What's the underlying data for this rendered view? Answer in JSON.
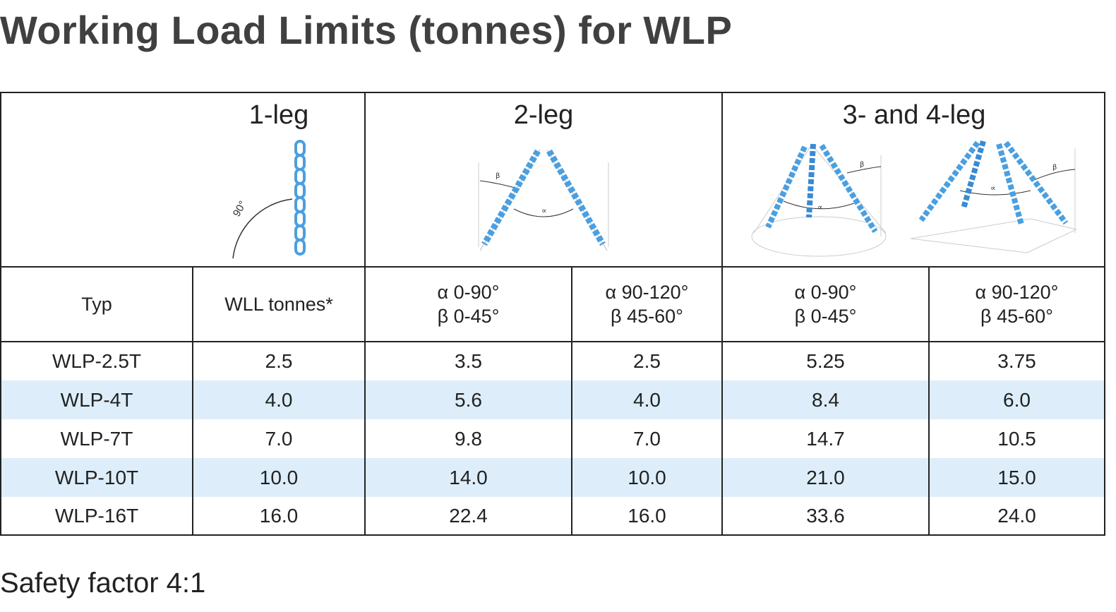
{
  "title": "Working Load Limits (tonnes) for WLP",
  "groups": {
    "one_leg": "1-leg",
    "two_leg": "2-leg",
    "three_four_leg": "3- and 4-leg"
  },
  "illustrations": {
    "angle_90": "90°",
    "beta": "β",
    "alpha": "∝",
    "chain_color": "#4a9fe0"
  },
  "headers": {
    "typ": "Typ",
    "wll": "WLL tonnes*",
    "two_leg_a": {
      "alpha": "α 0-90°",
      "beta": "β 0-45°"
    },
    "two_leg_b": {
      "alpha": "α 90-120°",
      "beta": "β 45-60°"
    },
    "four_leg_a": {
      "alpha": "α 0-90°",
      "beta": "β 0-45°"
    },
    "four_leg_b": {
      "alpha": "α 90-120°",
      "beta": "β 45-60°"
    }
  },
  "rows": [
    [
      "WLP-2.5T",
      "2.5",
      "3.5",
      "2.5",
      "5.25",
      "3.75"
    ],
    [
      "WLP-4T",
      "4.0",
      "5.6",
      "4.0",
      "8.4",
      "6.0"
    ],
    [
      "WLP-7T",
      "7.0",
      "9.8",
      "7.0",
      "14.7",
      "10.5"
    ],
    [
      "WLP-10T",
      "10.0",
      "14.0",
      "10.0",
      "21.0",
      "15.0"
    ],
    [
      "WLP-16T",
      "16.0",
      "22.4",
      "16.0",
      "33.6",
      "24.0"
    ]
  ],
  "band_color": "#ddeefa",
  "footer": "Safety factor 4:1"
}
